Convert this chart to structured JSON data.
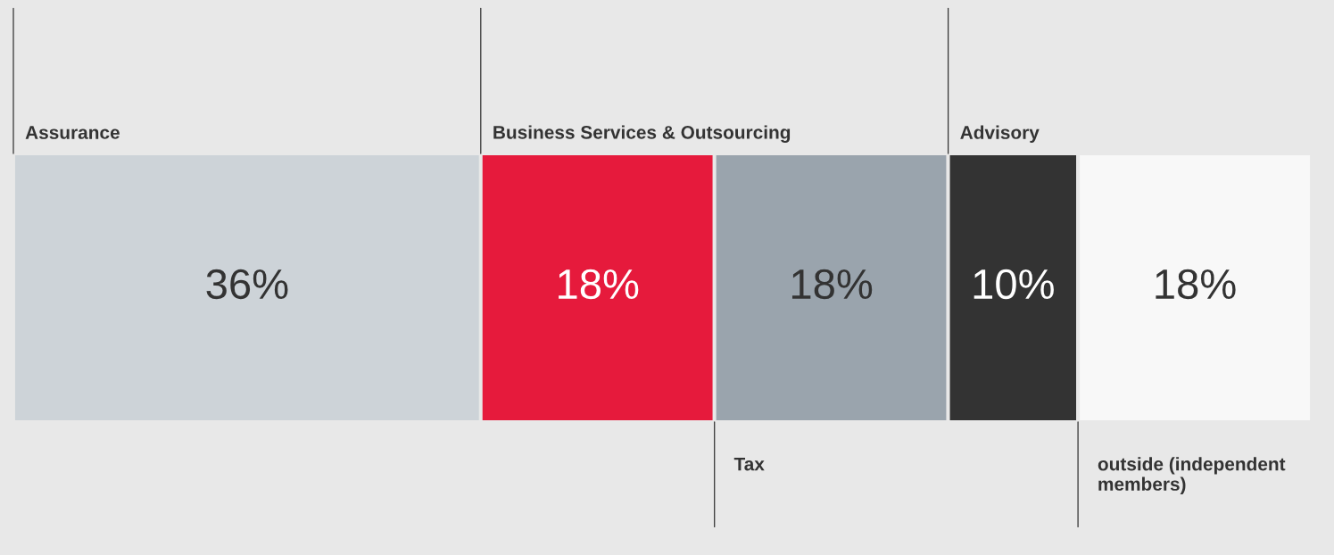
{
  "chart_data": {
    "type": "bar",
    "orientation": "horizontal",
    "stacked": true,
    "categories": [
      null
    ],
    "series": [
      {
        "name": "Assurance",
        "color": "#cdd3d8",
        "values": [
          36
        ],
        "value_labels": [
          "36%"
        ]
      },
      {
        "name": "Business Services & Outsourcing",
        "color": "#e61a3c",
        "values": [
          18
        ],
        "value_labels": [
          "18%"
        ]
      },
      {
        "name": "Tax",
        "color": "#9aa4ad",
        "values": [
          18
        ],
        "value_labels": [
          "18%"
        ]
      },
      {
        "name": "Advisory",
        "color": "#333333",
        "values": [
          10
        ],
        "value_labels": [
          "10%"
        ]
      },
      {
        "name": "outside (independent members)",
        "color": "#f8f8f8",
        "values": [
          18
        ],
        "value_labels": [
          "18%"
        ]
      }
    ]
  }
}
